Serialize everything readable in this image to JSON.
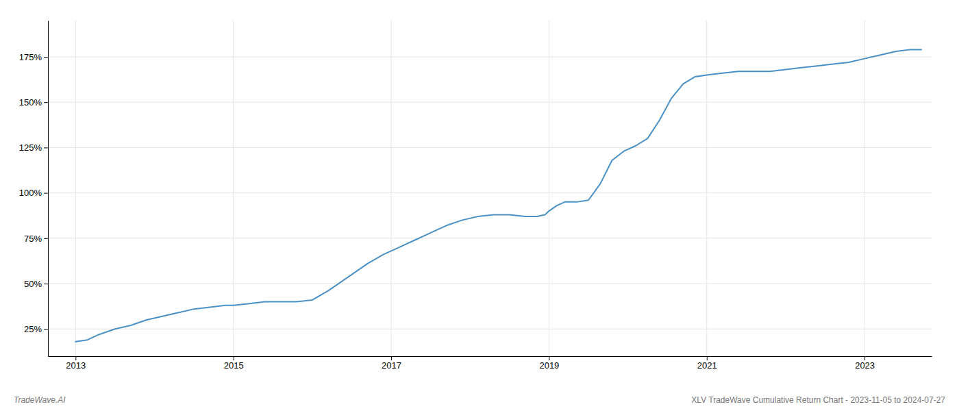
{
  "chart_data": {
    "type": "line",
    "x": [
      2013.0,
      2013.15,
      2013.3,
      2013.5,
      2013.7,
      2013.9,
      2014.1,
      2014.3,
      2014.5,
      2014.7,
      2014.9,
      2015.0,
      2015.2,
      2015.4,
      2015.6,
      2015.8,
      2016.0,
      2016.2,
      2016.5,
      2016.7,
      2016.9,
      2017.1,
      2017.3,
      2017.5,
      2017.7,
      2017.9,
      2018.1,
      2018.3,
      2018.5,
      2018.7,
      2018.85,
      2018.95,
      2019.0,
      2019.1,
      2019.2,
      2019.35,
      2019.5,
      2019.65,
      2019.8,
      2019.95,
      2020.1,
      2020.25,
      2020.4,
      2020.55,
      2020.7,
      2020.85,
      2021.0,
      2021.2,
      2021.4,
      2021.6,
      2021.8,
      2022.0,
      2022.2,
      2022.4,
      2022.6,
      2022.8,
      2023.0,
      2023.2,
      2023.4,
      2023.58,
      2023.72
    ],
    "values": [
      18,
      19,
      22,
      25,
      27,
      30,
      32,
      34,
      36,
      37,
      38,
      38,
      39,
      40,
      40,
      40,
      41,
      46,
      55,
      61,
      66,
      70,
      74,
      78,
      82,
      85,
      87,
      88,
      88,
      87,
      87,
      88,
      90,
      93,
      95,
      95,
      96,
      105,
      118,
      123,
      126,
      130,
      140,
      152,
      160,
      164,
      165,
      166,
      167,
      167,
      167,
      168,
      169,
      170,
      171,
      172,
      174,
      176,
      178,
      179,
      179
    ],
    "color": "#4a90c4",
    "xlim": [
      2012.65,
      2023.85
    ],
    "xticks": [
      2013,
      2015,
      2017,
      2019,
      2021,
      2023
    ],
    "ylim": [
      10,
      195
    ],
    "yticks": [
      {
        "value": 25,
        "label": "25%"
      },
      {
        "value": 50,
        "label": "50%"
      },
      {
        "value": 75,
        "label": "75%"
      },
      {
        "value": 100,
        "label": "100%"
      },
      {
        "value": 125,
        "label": "125%"
      },
      {
        "value": 150,
        "label": "150%"
      },
      {
        "value": 175,
        "label": "175%"
      }
    ],
    "grid": true,
    "annotations": [
      "TradeWave.AI",
      "XLV TradeWave Cumulative Return Chart - 2023-11-05 to 2024-07-27"
    ]
  }
}
